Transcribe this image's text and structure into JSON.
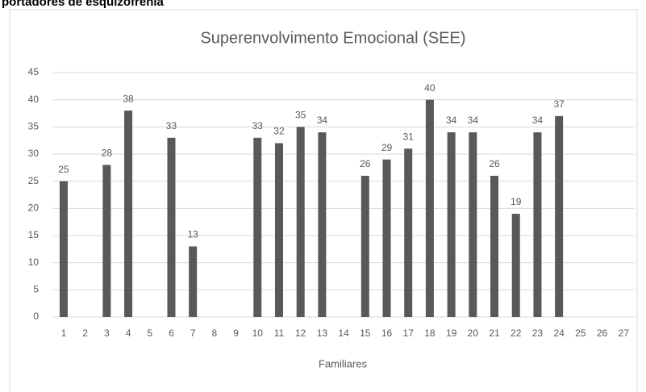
{
  "heading": "portadores de esquizofrenia",
  "chart_data": {
    "type": "bar",
    "title": "Superenvolvimento Emocional (SEE)",
    "x_label": "Familiares",
    "categories": [
      "1",
      "2",
      "3",
      "4",
      "5",
      "6",
      "7",
      "8",
      "9",
      "10",
      "11",
      "12",
      "13",
      "14",
      "15",
      "16",
      "17",
      "18",
      "19",
      "20",
      "21",
      "22",
      "23",
      "24",
      "25",
      "26",
      "27"
    ],
    "values": [
      25,
      null,
      28,
      38,
      null,
      33,
      13,
      null,
      null,
      33,
      32,
      35,
      34,
      null,
      26,
      29,
      31,
      40,
      34,
      34,
      26,
      19,
      34,
      37,
      null,
      null,
      null
    ],
    "color": "#595959",
    "ylim": [
      0,
      45
    ],
    "yticks": [
      0,
      5,
      10,
      15,
      20,
      25,
      30,
      35,
      40,
      45
    ],
    "grid": true
  }
}
